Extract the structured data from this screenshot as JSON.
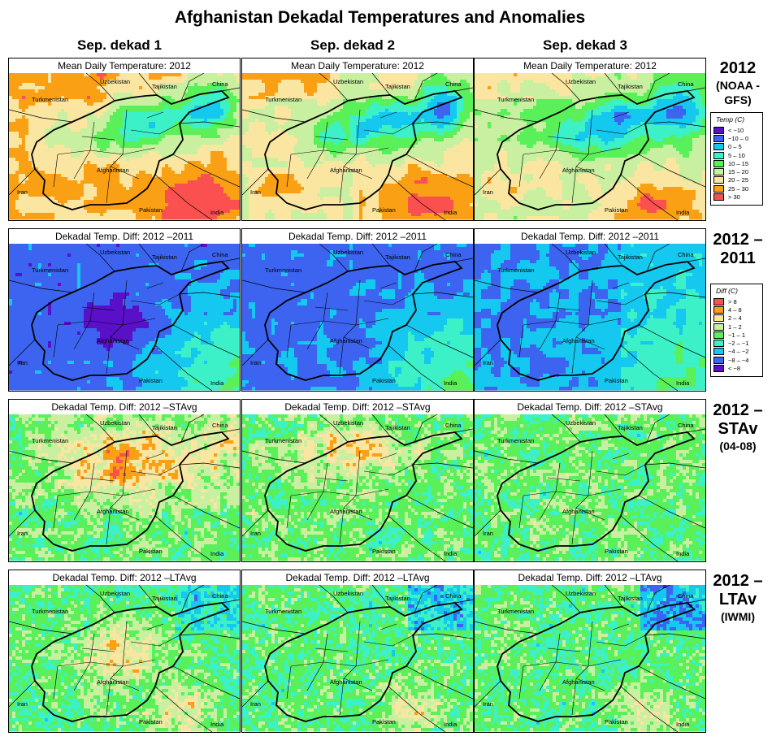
{
  "title": "Afghanistan Dekadal Temperatures and Anomalies",
  "columns": [
    "Sep. dekad 1",
    "Sep. dekad 2",
    "Sep. dekad 3"
  ],
  "rows": [
    {
      "label": "2012",
      "sub": "(NOAA -GFS)",
      "panel_title": "Mean Daily Temperature: 2012",
      "kind": "temp"
    },
    {
      "label": "2012 –2011",
      "sub": "",
      "panel_title": "Dekadal Temp. Diff: 2012 –2011",
      "kind": "diff"
    },
    {
      "label": "2012 –STAv",
      "sub": "(04-08)",
      "panel_title": "Dekadal Temp. Diff: 2012 –STAvg",
      "kind": "diff"
    },
    {
      "label": "2012 –LTAv",
      "sub": "(IWMI)",
      "panel_title": "Dekadal Temp. Diff: 2012 –LTAvg",
      "kind": "diff"
    }
  ],
  "map_labels": {
    "uzbekistan": "Uzbekistan",
    "tajikistan": "Tajikistan",
    "china": "China",
    "turkmenistan": "Turkmenistan",
    "afghanistan": "Afghanistan",
    "iran": "Iran",
    "pakistan": "Pakistan",
    "india": "India"
  },
  "legend_temp": {
    "title": "Temp (C)",
    "items": [
      {
        "label": "< −10",
        "color": "#5a10c8"
      },
      {
        "label": "−10 –  0",
        "color": "#3c64f0"
      },
      {
        "label": "0 –  5",
        "color": "#14c8f0"
      },
      {
        "label": "5 – 10",
        "color": "#3cf0c8"
      },
      {
        "label": "10 – 15",
        "color": "#5af05a"
      },
      {
        "label": "15 – 20",
        "color": "#c8f0a0"
      },
      {
        "label": "20 – 25",
        "color": "#fae6a0"
      },
      {
        "label": "25 – 30",
        "color": "#faa014"
      },
      {
        "label": "> 30",
        "color": "#fa5050"
      }
    ]
  },
  "legend_diff": {
    "title": "Diff (C)",
    "items": [
      {
        "label": "> 8",
        "color": "#fa5050"
      },
      {
        "label": "4 – 8",
        "color": "#faa014"
      },
      {
        "label": "2 – 4",
        "color": "#fae6a0"
      },
      {
        "label": "1 – 2",
        "color": "#c8f0a0"
      },
      {
        "label": "−1 – 1",
        "color": "#5af05a"
      },
      {
        "label": "−2 – −1",
        "color": "#3cf0c8"
      },
      {
        "label": "−4 – −2",
        "color": "#14c8f0"
      },
      {
        "label": "−8 – −4",
        "color": "#3c64f0"
      },
      {
        "label": "< −8",
        "color": "#5a10c8"
      }
    ]
  }
}
